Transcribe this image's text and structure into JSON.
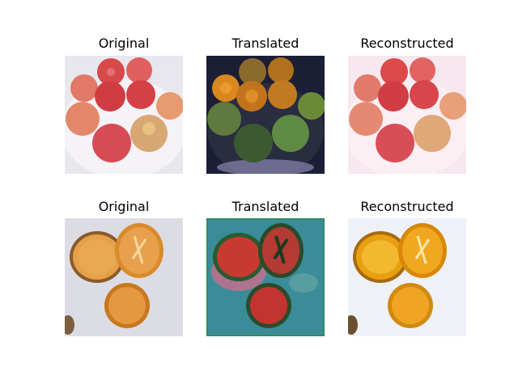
{
  "figure": {
    "rows": [
      {
        "subject": "apples",
        "panels": [
          {
            "title": "Original",
            "variant": "original"
          },
          {
            "title": "Translated",
            "variant": "translated-to-orange"
          },
          {
            "title": "Reconstructed",
            "variant": "reconstructed"
          }
        ]
      },
      {
        "subject": "oranges",
        "panels": [
          {
            "title": "Original",
            "variant": "original"
          },
          {
            "title": "Translated",
            "variant": "translated-to-apple"
          },
          {
            "title": "Reconstructed",
            "variant": "reconstructed"
          }
        ]
      }
    ]
  },
  "palette": {
    "apple_red": "#d83a3a",
    "apple_yellow": "#e8c86a",
    "orange_flesh": "#e89a2a",
    "orange_rind": "#f0b040",
    "translated_dark_bg": "#1c1e36",
    "translated_teal_bg": "#3a8c98"
  }
}
